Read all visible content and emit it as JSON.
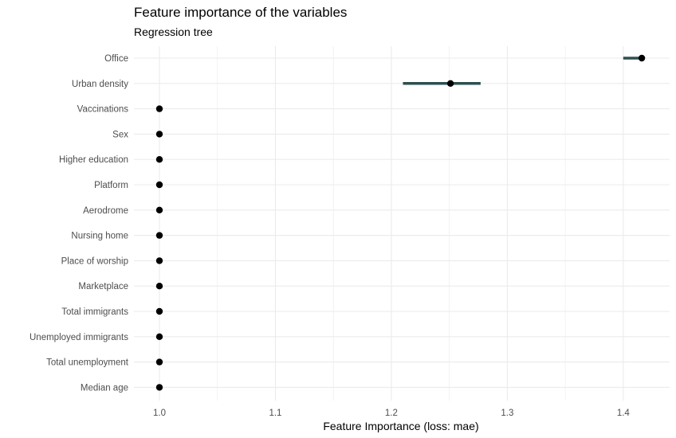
{
  "chart_data": {
    "type": "scatter",
    "title": "Feature importance of the variables",
    "subtitle": "Regression tree",
    "xlabel": "Feature Importance (loss: mae)",
    "ylabel": "",
    "xlim": [
      0.978,
      1.44
    ],
    "xticks": [
      1.0,
      1.1,
      1.2,
      1.3,
      1.4
    ],
    "xtick_labels": [
      "1.0",
      "1.1",
      "1.2",
      "1.3",
      "1.4"
    ],
    "grid": true,
    "legend": "none",
    "colors": {
      "point": "#000000",
      "interval": "#2f4f4f",
      "grid": "#ebebeb"
    },
    "features": [
      {
        "name": "Office",
        "value": 1.416,
        "lower": 1.4,
        "upper": 1.416
      },
      {
        "name": "Urban density",
        "value": 1.251,
        "lower": 1.21,
        "upper": 1.277
      },
      {
        "name": "Vaccinations",
        "value": 1.0,
        "lower": 1.0,
        "upper": 1.0
      },
      {
        "name": "Sex",
        "value": 1.0,
        "lower": 1.0,
        "upper": 1.0
      },
      {
        "name": "Higher education",
        "value": 1.0,
        "lower": 1.0,
        "upper": 1.0
      },
      {
        "name": "Platform",
        "value": 1.0,
        "lower": 1.0,
        "upper": 1.0
      },
      {
        "name": "Aerodrome",
        "value": 1.0,
        "lower": 1.0,
        "upper": 1.0
      },
      {
        "name": "Nursing home",
        "value": 1.0,
        "lower": 1.0,
        "upper": 1.0
      },
      {
        "name": "Place of worship",
        "value": 1.0,
        "lower": 1.0,
        "upper": 1.0
      },
      {
        "name": "Marketplace",
        "value": 1.0,
        "lower": 1.0,
        "upper": 1.0
      },
      {
        "name": "Total immigrants",
        "value": 1.0,
        "lower": 1.0,
        "upper": 1.0
      },
      {
        "name": "Unemployed immigrants",
        "value": 1.0,
        "lower": 1.0,
        "upper": 1.0
      },
      {
        "name": "Total unemployment",
        "value": 1.0,
        "lower": 1.0,
        "upper": 1.0
      },
      {
        "name": "Median age",
        "value": 1.0,
        "lower": 1.0,
        "upper": 1.0
      }
    ]
  }
}
